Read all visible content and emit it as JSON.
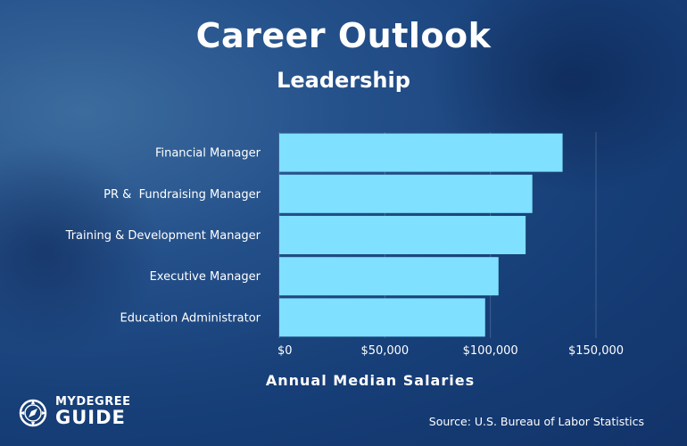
{
  "title": "Career Outlook",
  "subtitle": "Leadership",
  "source": "Source: U.S. Bureau of Labor Statistics",
  "logo": {
    "line1": "MYDEGREE",
    "line2": "GUIDE"
  },
  "colors": {
    "bar": "#7fe0ff",
    "background": "#1b4379",
    "text": "#ffffff"
  },
  "chart_data": {
    "type": "bar",
    "orientation": "horizontal",
    "categories": [
      "Financial Manager",
      "PR &  Fundraising Manager",
      "Training & Development Manager",
      "Executive Manager",
      "Education Administrator"
    ],
    "values": [
      134180,
      119860,
      116670,
      103840,
      97500
    ],
    "xlabel": "Annual Median Salaries",
    "ylabel": "",
    "xlim": [
      0,
      150000
    ],
    "xticks": [
      0,
      50000,
      100000,
      150000
    ],
    "xtick_labels": [
      "$0",
      "$50,000",
      "$100,000",
      "$150,000"
    ],
    "grid": true
  }
}
